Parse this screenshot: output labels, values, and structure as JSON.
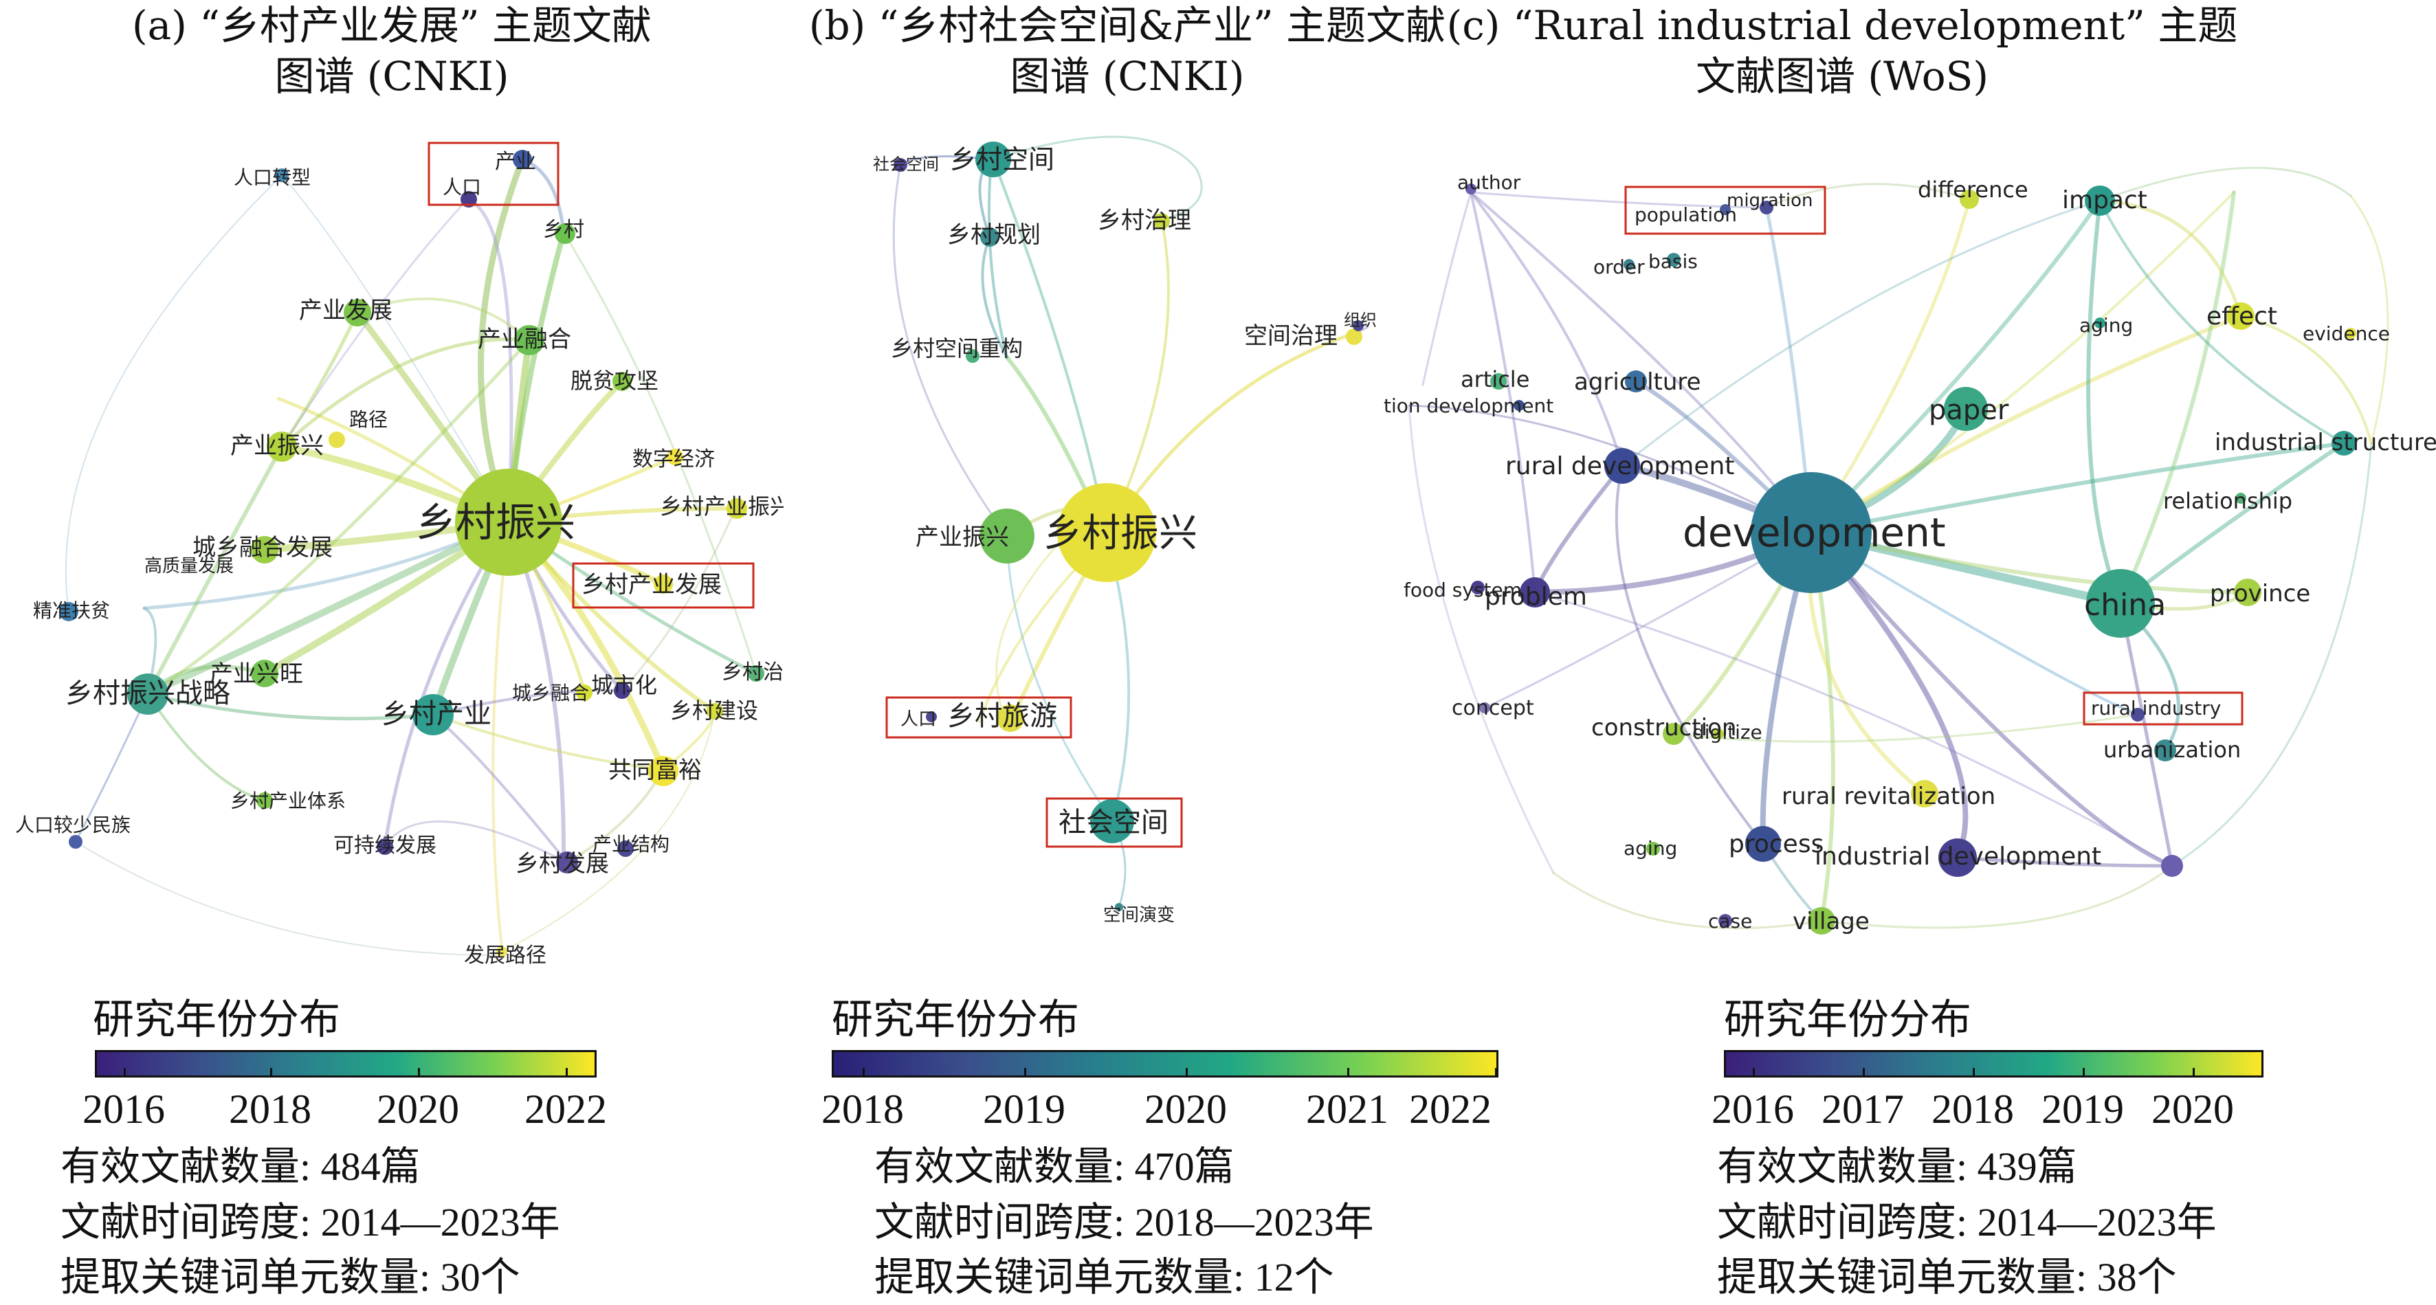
{
  "panels": [
    {
      "id": "a",
      "title_line1": "(a) “乡村产业发展” 主题文献",
      "title_line2": "图谱 (CNKI)",
      "keywords": [
        {
          "label": "乡村振兴",
          "color": "#a8cf3c"
        },
        {
          "label": "产业",
          "color": "#3f59a3"
        },
        {
          "label": "人口",
          "color": "#4c3d8c"
        },
        {
          "label": "人口转型",
          "color": "#4a8cb8"
        },
        {
          "label": "乡村",
          "color": "#6bc24e"
        },
        {
          "label": "产业发展",
          "color": "#7cc44a"
        },
        {
          "label": "产业融合",
          "color": "#6cbf52"
        },
        {
          "label": "脱贫攻坚",
          "color": "#86c947"
        },
        {
          "label": "路径",
          "color": "#e8e048"
        },
        {
          "label": "产业振兴",
          "color": "#b2d53c"
        },
        {
          "label": "数字经济",
          "color": "#f4e340"
        },
        {
          "label": "乡村产业振兴",
          "color": "#d8df3b"
        },
        {
          "label": "城乡融合发展",
          "color": "#9ccd46"
        },
        {
          "label": "高质量发展",
          "color": "#d9de3d"
        },
        {
          "label": "乡村产业发展",
          "color": "#e8e23c"
        },
        {
          "label": "精准扶贫",
          "color": "#3f7fb0"
        },
        {
          "label": "产业兴旺",
          "color": "#74c350"
        },
        {
          "label": "乡村振兴战略",
          "color": "#3fa08b"
        },
        {
          "label": "乡村产业",
          "color": "#2f9e8f"
        },
        {
          "label": "城乡融合",
          "color": "#d6df3a"
        },
        {
          "label": "城市化",
          "color": "#463d8d"
        },
        {
          "label": "乡村治理",
          "color": "#5ab47a"
        },
        {
          "label": "乡村建设",
          "color": "#d8df3b"
        },
        {
          "label": "共同富裕",
          "color": "#f1e43a"
        },
        {
          "label": "人口较少民族",
          "color": "#4a5fa6"
        },
        {
          "label": "乡村产业体系",
          "color": "#7cc44a"
        },
        {
          "label": "可持续发展",
          "color": "#4a4390"
        },
        {
          "label": "乡村发展",
          "color": "#5b4d9a"
        },
        {
          "label": "产业结构",
          "color": "#4d4a95"
        },
        {
          "label": "发展路径",
          "color": "#f0e45a"
        }
      ],
      "legend_title": "研究年份分布",
      "ticks": [
        "2016",
        "2018",
        "2020",
        "2022"
      ],
      "stats": [
        "有效文献数量: 484篇",
        "文献时间跨度: 2014—2023年",
        "提取关键词单元数量: 30个"
      ]
    },
    {
      "id": "b",
      "title_line1": "(b) “乡村社会空间&产业” 主题文献",
      "title_line2": "图谱 (CNKI)",
      "keywords": [
        {
          "label": "乡村振兴",
          "color": "#e7e03a"
        },
        {
          "label": "产业振兴",
          "color": "#6fbf57"
        },
        {
          "label": "社会空间",
          "color": "#4f4996"
        },
        {
          "label": "乡村空间",
          "color": "#2f9a8e"
        },
        {
          "label": "乡村规划",
          "color": "#3a8b8e"
        },
        {
          "label": "乡村治理",
          "color": "#c8da3f"
        },
        {
          "label": "乡村空间重构",
          "color": "#4db07e"
        },
        {
          "label": "空间治理",
          "color": "#e8e046"
        },
        {
          "label": "组织",
          "color": "#4c4892"
        },
        {
          "label": "人口",
          "color": "#4d4a95"
        },
        {
          "label": "乡村旅游",
          "color": "#e0dd45"
        },
        {
          "label": "社会空间",
          "color": "#2f9a8e"
        },
        {
          "label": "空间演变",
          "color": "#3a8b8e"
        }
      ],
      "legend_title": "研究年份分布",
      "ticks": [
        "2018",
        "2019",
        "2020",
        "2021",
        "2022"
      ],
      "stats": [
        "有效文献数量: 470篇",
        "文献时间跨度: 2018—2023年",
        "提取关键词单元数量: 12个"
      ]
    },
    {
      "id": "c",
      "title_line1": "(c) “Rural industrial development” 主题",
      "title_line2": "文献图谱 (WoS)",
      "keywords": [
        {
          "label": "development",
          "color": "#2f7d93"
        },
        {
          "label": "china",
          "color": "#37a387"
        },
        {
          "label": "paper",
          "color": "#3aa686"
        },
        {
          "label": "author",
          "color": "#6a5fae"
        },
        {
          "label": "population",
          "color": "#4b5a9c"
        },
        {
          "label": "migration",
          "color": "#4c4b95"
        },
        {
          "label": "difference",
          "color": "#c9da3f"
        },
        {
          "label": "impact",
          "color": "#2c9b8c"
        },
        {
          "label": "order",
          "color": "#3d7f8f"
        },
        {
          "label": "basis",
          "color": "#3b8a8e"
        },
        {
          "label": "effect",
          "color": "#d6df35"
        },
        {
          "label": "aging",
          "color": "#2aa188"
        },
        {
          "label": "evidence",
          "color": "#e3e13a"
        },
        {
          "label": "article",
          "color": "#4fb27d"
        },
        {
          "label": "agriculture",
          "color": "#3a6fa0"
        },
        {
          "label": "tion development",
          "color": "#3a4f8c"
        },
        {
          "label": "industrial structure",
          "color": "#2f9a8e"
        },
        {
          "label": "rural development",
          "color": "#3b4a94"
        },
        {
          "label": "relationship",
          "color": "#54b078"
        },
        {
          "label": "food system",
          "color": "#4c3d8c"
        },
        {
          "label": "problem",
          "color": "#463d8d"
        },
        {
          "label": "province",
          "color": "#a6d044"
        },
        {
          "label": "concept",
          "color": "#7f72b5"
        },
        {
          "label": "construction",
          "color": "#9ccd46"
        },
        {
          "label": "digitize",
          "color": "#b4d63c"
        },
        {
          "label": "rural industry",
          "color": "#4c4b95"
        },
        {
          "label": "urbanization",
          "color": "#3a8b8e"
        },
        {
          "label": "rural revitalization",
          "color": "#e0dd45"
        },
        {
          "label": "aging",
          "color": "#7cc44a"
        },
        {
          "label": "process",
          "color": "#3b4f93"
        },
        {
          "label": "industrial development",
          "color": "#47428f"
        },
        {
          "label": "case",
          "color": "#5b4d9a"
        },
        {
          "label": "village",
          "color": "#8cc94a"
        }
      ],
      "legend_title": "研究年份分布",
      "ticks": [
        "2016",
        "2017",
        "2018",
        "2019",
        "2020"
      ],
      "stats": [
        "有效文献数量: 439篇",
        "文献时间跨度: 2014—2023年",
        "提取关键词单元数量: 38个"
      ]
    }
  ],
  "highlight_color": "#cc2b1d"
}
